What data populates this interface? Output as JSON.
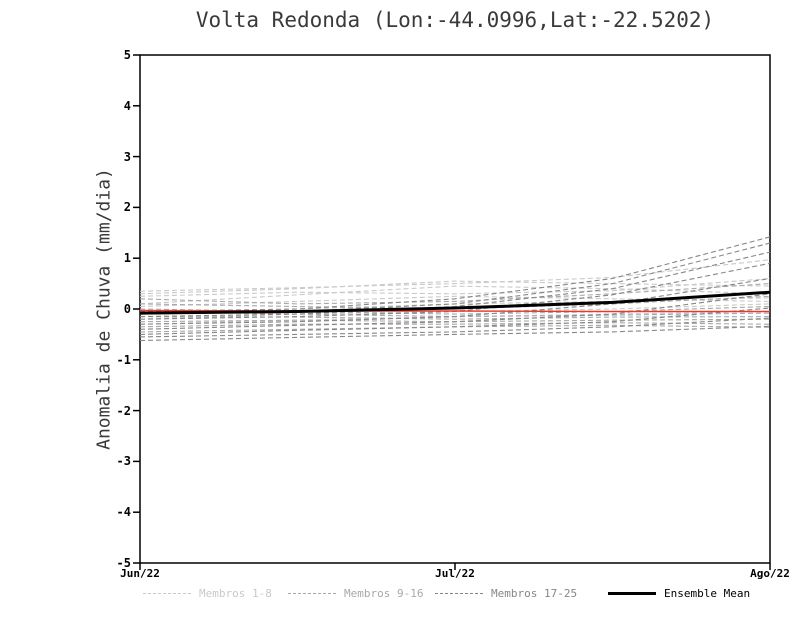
{
  "chart_data": {
    "type": "line",
    "title": "Volta Redonda (Lon:-44.0996,Lat:-22.5202)",
    "ylabel": "Anomalia de Chuva (mm/dia)",
    "ylim": [
      -5,
      5
    ],
    "yticks": [
      5,
      4,
      3,
      2,
      1,
      0,
      -1,
      -2,
      -3,
      -4,
      -5
    ],
    "x_ticklabels": [
      "Jun/22",
      "Jul/22",
      "Ago/22"
    ],
    "x_tick_positions": [
      0,
      0.5,
      1
    ],
    "grid": false,
    "legend_position": "bottom",
    "frame_color": "#000000",
    "groups": [
      {
        "name": "Membros 1-8",
        "color": "#c9c9c9",
        "style": "dashed"
      },
      {
        "name": "Membros 9-16",
        "color": "#a8a8a8",
        "style": "dashed"
      },
      {
        "name": "Membros 17-25",
        "color": "#878787",
        "style": "dashed"
      },
      {
        "name": "Ensemble Mean",
        "color": "#000000",
        "style": "solid"
      }
    ],
    "x": [
      0,
      0.25,
      0.5,
      0.75,
      1
    ],
    "members": [
      {
        "group": 0,
        "values": [
          0.35,
          0.42,
          0.5,
          0.62,
          0.97
        ]
      },
      {
        "group": 0,
        "values": [
          0.3,
          0.4,
          0.55,
          0.5,
          0.45
        ]
      },
      {
        "group": 0,
        "values": [
          0.25,
          0.33,
          0.3,
          0.36,
          0.6
        ]
      },
      {
        "group": 0,
        "values": [
          0.1,
          0.28,
          0.45,
          0.4,
          0.3
        ]
      },
      {
        "group": 0,
        "values": [
          0.05,
          0.15,
          0.25,
          0.2,
          0.15
        ]
      },
      {
        "group": 0,
        "values": [
          -0.1,
          0.0,
          0.1,
          0.15,
          0.22
        ]
      },
      {
        "group": 0,
        "values": [
          -0.2,
          -0.1,
          -0.05,
          0.0,
          0.1
        ]
      },
      {
        "group": 0,
        "values": [
          -0.3,
          -0.22,
          -0.15,
          -0.1,
          -0.05
        ]
      },
      {
        "group": 1,
        "values": [
          0.2,
          0.1,
          0.15,
          0.3,
          0.5
        ]
      },
      {
        "group": 1,
        "values": [
          0.1,
          0.05,
          0.0,
          0.1,
          0.25
        ]
      },
      {
        "group": 1,
        "values": [
          0.0,
          -0.05,
          -0.1,
          -0.05,
          0.05
        ]
      },
      {
        "group": 1,
        "values": [
          -0.05,
          -0.1,
          -0.15,
          -0.12,
          -0.08
        ]
      },
      {
        "group": 1,
        "values": [
          -0.15,
          -0.16,
          -0.2,
          -0.16,
          -0.15
        ]
      },
      {
        "group": 1,
        "values": [
          -0.25,
          -0.22,
          -0.25,
          -0.22,
          -0.2
        ]
      },
      {
        "group": 1,
        "values": [
          -0.35,
          -0.3,
          -0.3,
          -0.27,
          -0.3
        ]
      },
      {
        "group": 1,
        "values": [
          -0.45,
          -0.4,
          -0.35,
          -0.32,
          -0.36
        ]
      },
      {
        "group": 2,
        "values": [
          -0.05,
          0.0,
          0.2,
          0.6,
          1.42
        ]
      },
      {
        "group": 2,
        "values": [
          -0.1,
          -0.05,
          0.1,
          0.5,
          1.3
        ]
      },
      {
        "group": 2,
        "values": [
          -0.15,
          -0.1,
          0.05,
          0.4,
          1.12
        ]
      },
      {
        "group": 2,
        "values": [
          -0.2,
          -0.15,
          -0.05,
          0.28,
          0.9
        ]
      },
      {
        "group": 2,
        "values": [
          -0.3,
          -0.25,
          -0.15,
          0.1,
          0.6
        ]
      },
      {
        "group": 2,
        "values": [
          -0.4,
          -0.32,
          -0.25,
          -0.1,
          0.3
        ]
      },
      {
        "group": 2,
        "values": [
          -0.5,
          -0.42,
          -0.35,
          -0.25,
          0.02
        ]
      },
      {
        "group": 2,
        "values": [
          -0.55,
          -0.5,
          -0.45,
          -0.35,
          -0.18
        ]
      },
      {
        "group": 2,
        "values": [
          -0.62,
          -0.56,
          -0.5,
          -0.45,
          -0.34
        ]
      }
    ],
    "ensemble_mean": {
      "values": [
        -0.08,
        -0.05,
        0.02,
        0.13,
        0.33
      ]
    },
    "reference_line": {
      "color": "#e8392e",
      "values": [
        -0.03,
        -0.04,
        -0.04,
        -0.05,
        -0.05
      ]
    }
  }
}
